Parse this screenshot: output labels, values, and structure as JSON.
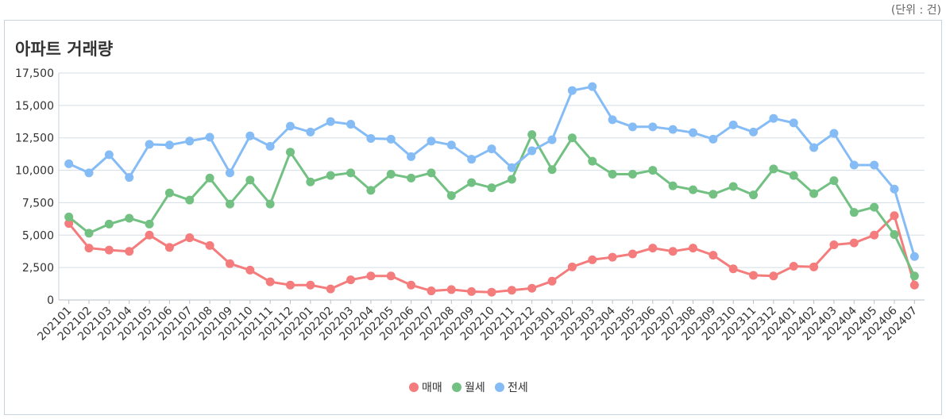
{
  "unit_label": "(단위 : 건)",
  "chart_data": {
    "type": "line",
    "title": "아파트 거래량",
    "xlabel": "",
    "ylabel": "",
    "ylim": [
      0,
      17500
    ],
    "yticks": [
      0,
      2500,
      5000,
      7500,
      10000,
      12500,
      15000,
      17500
    ],
    "ytick_labels": [
      "0",
      "2,500",
      "5,000",
      "7,500",
      "10,000",
      "12,500",
      "15,000",
      "17,500"
    ],
    "grid": true,
    "legend_position": "bottom",
    "categories": [
      "202101",
      "202102",
      "202103",
      "202104",
      "202105",
      "202106",
      "202107",
      "202108",
      "202109",
      "202110",
      "202111",
      "202112",
      "202201",
      "202202",
      "202203",
      "202204",
      "202205",
      "202206",
      "202207",
      "202208",
      "202209",
      "202210",
      "202211",
      "202212",
      "202301",
      "202302",
      "202303",
      "202304",
      "202305",
      "202306",
      "202307",
      "202308",
      "202309",
      "202310",
      "202311",
      "202312",
      "202401",
      "202402",
      "202403",
      "202404",
      "202405",
      "202406",
      "202407"
    ],
    "series": [
      {
        "name": "매매",
        "color": "#f47c7c",
        "values": [
          5900,
          4000,
          3850,
          3750,
          5000,
          4050,
          4800,
          4200,
          2800,
          2300,
          1400,
          1150,
          1150,
          850,
          1550,
          1850,
          1850,
          1150,
          700,
          800,
          650,
          600,
          750,
          900,
          1450,
          2550,
          3100,
          3300,
          3550,
          4000,
          3750,
          4000,
          3450,
          2400,
          1900,
          1850,
          2600,
          2550,
          4250,
          4400,
          5000,
          6500,
          1150
        ]
      },
      {
        "name": "월세",
        "color": "#72c183",
        "values": [
          6400,
          5150,
          5850,
          6300,
          5850,
          8250,
          7700,
          9400,
          7400,
          9250,
          7400,
          11400,
          9100,
          9600,
          9800,
          8450,
          9700,
          9400,
          9800,
          8050,
          9050,
          8650,
          9300,
          12750,
          10050,
          12500,
          10700,
          9700,
          9700,
          10000,
          8800,
          8500,
          8150,
          8750,
          8100,
          10100,
          9600,
          8200,
          9200,
          6750,
          7150,
          5050,
          1850
        ]
      },
      {
        "name": "전세",
        "color": "#86bcf6",
        "values": [
          10500,
          9800,
          11200,
          9450,
          12000,
          11950,
          12250,
          12550,
          9800,
          12650,
          11850,
          13400,
          12950,
          13750,
          13550,
          12450,
          12400,
          11050,
          12250,
          11950,
          10850,
          11650,
          10200,
          11500,
          12350,
          16150,
          16450,
          13900,
          13350,
          13350,
          13150,
          12900,
          12400,
          13500,
          12950,
          14000,
          13650,
          11750,
          12850,
          10400,
          10400,
          8550,
          3350
        ]
      }
    ]
  }
}
